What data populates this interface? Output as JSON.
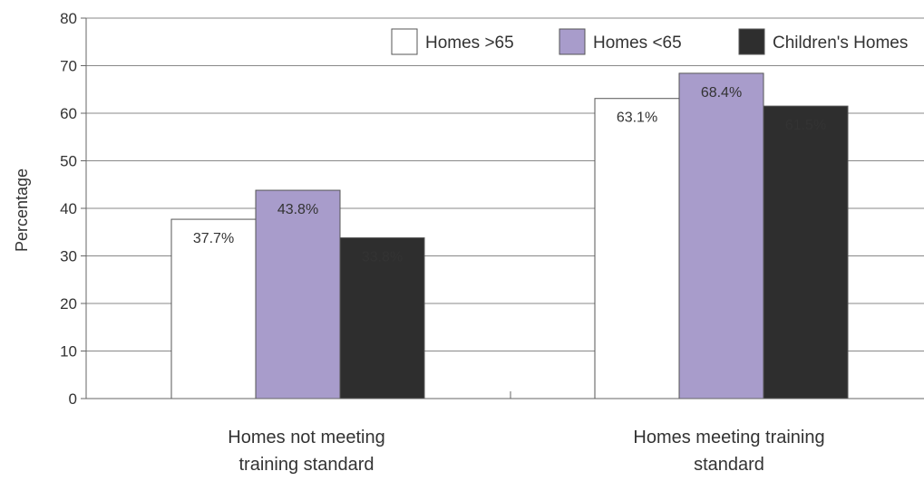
{
  "chart_data": {
    "type": "bar",
    "title": "",
    "xlabel": "",
    "ylabel": "Percentage",
    "ylim": [
      0,
      80
    ],
    "yticks": [
      0,
      10,
      20,
      30,
      40,
      50,
      60,
      70,
      80
    ],
    "grid": true,
    "legend_position": "top-right",
    "categories": [
      [
        "Homes not meeting",
        "training standard"
      ],
      [
        "Homes meeting training",
        "standard"
      ]
    ],
    "series": [
      {
        "name": "Homes >65",
        "values": [
          37.7,
          63.1
        ],
        "labels": [
          "37.7%",
          "63.1%"
        ],
        "color": "#ffffff",
        "label_color": "#333333"
      },
      {
        "name": "Homes <65",
        "values": [
          43.8,
          68.4
        ],
        "labels": [
          "43.8%",
          "68.4%"
        ],
        "color": "#a89ccb",
        "label_color": "#ffffff"
      },
      {
        "name": "Children's Homes",
        "values": [
          33.8,
          61.5
        ],
        "labels": [
          "33.8%",
          "61.5%"
        ],
        "color": "#2e2e2e",
        "label_color": "#ffffff"
      }
    ]
  }
}
